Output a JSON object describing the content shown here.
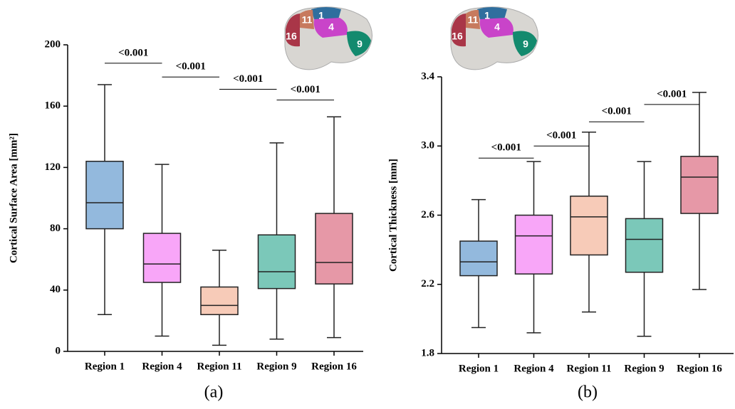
{
  "chart_data": [
    {
      "type": "box",
      "ylabel": "Cortical Surface Area [mm²]",
      "caption": "(a)",
      "categories": [
        "Region 1",
        "Region 4",
        "Region 11",
        "Region 9",
        "Region 16"
      ],
      "colors": [
        "#3a7fc1",
        "#f25cf2",
        "#f0a07e",
        "#0e9a80",
        "#d2435f"
      ],
      "boxes": [
        {
          "min": 24,
          "q1": 80,
          "median": 97,
          "q3": 124,
          "max": 174
        },
        {
          "min": 10,
          "q1": 45,
          "median": 57,
          "q3": 77,
          "max": 122
        },
        {
          "min": 4,
          "q1": 24,
          "median": 30,
          "q3": 42,
          "max": 66
        },
        {
          "min": 8,
          "q1": 41,
          "median": 52,
          "q3": 76,
          "max": 136
        },
        {
          "min": 9,
          "q1": 44,
          "median": 58,
          "q3": 90,
          "max": 153
        }
      ],
      "ylim": [
        0,
        200
      ],
      "yticks": [
        0,
        40,
        80,
        120,
        160,
        200
      ],
      "brackets": [
        {
          "from": 0,
          "to": 1,
          "y": 188,
          "text": "<0.001"
        },
        {
          "from": 1,
          "to": 2,
          "y": 179,
          "text": "<0.001"
        },
        {
          "from": 2,
          "to": 3,
          "y": 171,
          "text": "<0.001"
        },
        {
          "from": 3,
          "to": 4,
          "y": 164,
          "text": "<0.001"
        }
      ],
      "inset_labels": [
        "1",
        "4",
        "9",
        "11",
        "16"
      ]
    },
    {
      "type": "box",
      "ylabel": "Cortical Thickness [mm]",
      "caption": "(b)",
      "categories": [
        "Region 1",
        "Region 4",
        "Region 11",
        "Region 9",
        "Region 16"
      ],
      "colors": [
        "#3a7fc1",
        "#f25cf2",
        "#f0a07e",
        "#0e9a80",
        "#d2435f"
      ],
      "boxes": [
        {
          "min": 1.95,
          "q1": 2.25,
          "median": 2.33,
          "q3": 2.45,
          "max": 2.69
        },
        {
          "min": 1.92,
          "q1": 2.26,
          "median": 2.48,
          "q3": 2.6,
          "max": 2.91
        },
        {
          "min": 2.04,
          "q1": 2.37,
          "median": 2.59,
          "q3": 2.71,
          "max": 3.08
        },
        {
          "min": 1.9,
          "q1": 2.27,
          "median": 2.46,
          "q3": 2.58,
          "max": 2.91
        },
        {
          "min": 2.17,
          "q1": 2.61,
          "median": 2.82,
          "q3": 2.94,
          "max": 3.31
        }
      ],
      "ylim": [
        1.8,
        3.4
      ],
      "yticks": [
        1.8,
        2.2,
        2.6,
        {
          "value": 3,
          "label": "3.0"
        },
        3.4
      ],
      "brackets": [
        {
          "from": 0,
          "to": 1,
          "y": 2.93,
          "text": "<0.001"
        },
        {
          "from": 1,
          "to": 2,
          "y": 3.0,
          "text": "<0.001"
        },
        {
          "from": 2,
          "to": 3,
          "y": 3.14,
          "text": "<0.001"
        },
        {
          "from": 3,
          "to": 4,
          "y": 3.24,
          "text": "<0.001"
        }
      ],
      "inset_labels": [
        "1",
        "4",
        "9",
        "11",
        "16"
      ]
    }
  ]
}
